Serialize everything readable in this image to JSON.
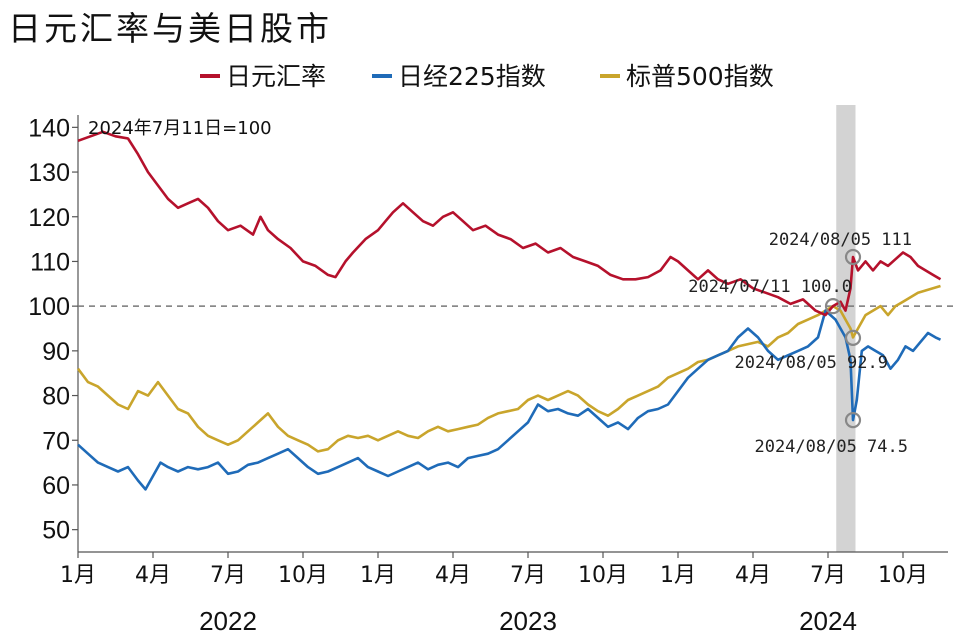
{
  "title": "日元汇率与美日股市",
  "chart_data": {
    "type": "line",
    "note": "2024年7月11日=100",
    "ylim": [
      45,
      145
    ],
    "yticks": [
      50,
      60,
      70,
      80,
      90,
      100,
      110,
      120,
      130,
      140
    ],
    "x_months": [
      {
        "label": "1月",
        "m": 0
      },
      {
        "label": "4月",
        "m": 3
      },
      {
        "label": "7月",
        "m": 6
      },
      {
        "label": "10月",
        "m": 9
      },
      {
        "label": "1月",
        "m": 12
      },
      {
        "label": "4月",
        "m": 15
      },
      {
        "label": "7月",
        "m": 18
      },
      {
        "label": "10月",
        "m": 21
      },
      {
        "label": "1月",
        "m": 24
      },
      {
        "label": "4月",
        "m": 27
      },
      {
        "label": "7月",
        "m": 30
      },
      {
        "label": "10月",
        "m": 33
      }
    ],
    "years": [
      {
        "label": "2022",
        "m": 6
      },
      {
        "label": "2023",
        "m": 18
      },
      {
        "label": "2024",
        "m": 30
      }
    ],
    "xlim_months": [
      0,
      34.8
    ],
    "shaded_period_months": [
      30.33,
      31.1
    ],
    "reference_line": 100,
    "series": [
      {
        "name": "日元汇率",
        "color": "#b5112c",
        "points": [
          [
            0,
            137
          ],
          [
            0.5,
            138
          ],
          [
            1,
            139
          ],
          [
            1.5,
            138
          ],
          [
            2,
            137.5
          ],
          [
            2.4,
            134
          ],
          [
            2.8,
            130
          ],
          [
            3.2,
            127
          ],
          [
            3.6,
            124
          ],
          [
            4,
            122
          ],
          [
            4.4,
            123
          ],
          [
            4.8,
            124
          ],
          [
            5.2,
            122
          ],
          [
            5.6,
            119
          ],
          [
            6,
            117
          ],
          [
            6.5,
            118
          ],
          [
            7,
            116
          ],
          [
            7.3,
            120
          ],
          [
            7.6,
            117
          ],
          [
            8,
            115
          ],
          [
            8.5,
            113
          ],
          [
            9,
            110
          ],
          [
            9.5,
            109
          ],
          [
            10,
            107
          ],
          [
            10.3,
            106.5
          ],
          [
            10.7,
            110
          ],
          [
            11,
            112
          ],
          [
            11.5,
            115
          ],
          [
            12,
            117
          ],
          [
            12.3,
            119
          ],
          [
            12.6,
            121
          ],
          [
            13,
            123
          ],
          [
            13.4,
            121
          ],
          [
            13.8,
            119
          ],
          [
            14.2,
            118
          ],
          [
            14.6,
            120
          ],
          [
            15,
            121
          ],
          [
            15.4,
            119
          ],
          [
            15.8,
            117
          ],
          [
            16.3,
            118
          ],
          [
            16.8,
            116
          ],
          [
            17.3,
            115
          ],
          [
            17.8,
            113
          ],
          [
            18.3,
            114
          ],
          [
            18.8,
            112
          ],
          [
            19.3,
            113
          ],
          [
            19.8,
            111
          ],
          [
            20.3,
            110
          ],
          [
            20.8,
            109
          ],
          [
            21.3,
            107
          ],
          [
            21.8,
            106
          ],
          [
            22.3,
            106
          ],
          [
            22.8,
            106.5
          ],
          [
            23.3,
            108
          ],
          [
            23.7,
            111
          ],
          [
            24,
            110
          ],
          [
            24.4,
            108
          ],
          [
            24.8,
            106
          ],
          [
            25.2,
            108
          ],
          [
            25.6,
            106
          ],
          [
            26,
            105
          ],
          [
            26.5,
            106
          ],
          [
            27,
            104
          ],
          [
            27.5,
            103
          ],
          [
            28,
            102
          ],
          [
            28.5,
            100.5
          ],
          [
            29,
            101.5
          ],
          [
            29.5,
            99
          ],
          [
            29.9,
            98
          ],
          [
            30.2,
            100
          ],
          [
            30.5,
            101
          ],
          [
            30.7,
            99
          ],
          [
            30.9,
            104
          ],
          [
            31,
            111
          ],
          [
            31.2,
            108
          ],
          [
            31.5,
            110
          ],
          [
            31.8,
            108
          ],
          [
            32.1,
            110
          ],
          [
            32.4,
            109
          ],
          [
            32.7,
            110.5
          ],
          [
            33,
            112
          ],
          [
            33.3,
            111
          ],
          [
            33.6,
            109
          ],
          [
            33.9,
            108
          ],
          [
            34.2,
            107
          ],
          [
            34.5,
            106
          ]
        ]
      },
      {
        "name": "日经225指数",
        "color": "#1f6bb8",
        "points": [
          [
            0,
            69
          ],
          [
            0.4,
            67
          ],
          [
            0.8,
            65
          ],
          [
            1.2,
            64
          ],
          [
            1.6,
            63
          ],
          [
            2,
            64
          ],
          [
            2.4,
            61
          ],
          [
            2.7,
            59
          ],
          [
            3,
            62
          ],
          [
            3.3,
            65
          ],
          [
            3.6,
            64
          ],
          [
            4,
            63
          ],
          [
            4.4,
            64
          ],
          [
            4.8,
            63.5
          ],
          [
            5.2,
            64
          ],
          [
            5.6,
            65
          ],
          [
            6,
            62.5
          ],
          [
            6.4,
            63
          ],
          [
            6.8,
            64.5
          ],
          [
            7.2,
            65
          ],
          [
            7.6,
            66
          ],
          [
            8,
            67
          ],
          [
            8.4,
            68
          ],
          [
            8.8,
            66
          ],
          [
            9.2,
            64
          ],
          [
            9.6,
            62.5
          ],
          [
            10,
            63
          ],
          [
            10.4,
            64
          ],
          [
            10.8,
            65
          ],
          [
            11.2,
            66
          ],
          [
            11.6,
            64
          ],
          [
            12,
            63
          ],
          [
            12.4,
            62
          ],
          [
            12.8,
            63
          ],
          [
            13.2,
            64
          ],
          [
            13.6,
            65
          ],
          [
            14,
            63.5
          ],
          [
            14.4,
            64.5
          ],
          [
            14.8,
            65
          ],
          [
            15.2,
            64
          ],
          [
            15.6,
            66
          ],
          [
            16,
            66.5
          ],
          [
            16.4,
            67
          ],
          [
            16.8,
            68
          ],
          [
            17.2,
            70
          ],
          [
            17.6,
            72
          ],
          [
            18,
            74
          ],
          [
            18.4,
            78
          ],
          [
            18.8,
            76.5
          ],
          [
            19.2,
            77
          ],
          [
            19.6,
            76
          ],
          [
            20,
            75.5
          ],
          [
            20.4,
            77
          ],
          [
            20.8,
            75
          ],
          [
            21.2,
            73
          ],
          [
            21.6,
            74
          ],
          [
            22,
            72.5
          ],
          [
            22.4,
            75
          ],
          [
            22.8,
            76.5
          ],
          [
            23.2,
            77
          ],
          [
            23.6,
            78
          ],
          [
            24,
            81
          ],
          [
            24.4,
            84
          ],
          [
            24.8,
            86
          ],
          [
            25.2,
            88
          ],
          [
            25.6,
            89
          ],
          [
            26,
            90
          ],
          [
            26.4,
            93
          ],
          [
            26.8,
            95
          ],
          [
            27.2,
            93
          ],
          [
            27.6,
            90
          ],
          [
            28,
            88
          ],
          [
            28.4,
            89
          ],
          [
            28.8,
            90
          ],
          [
            29.2,
            91
          ],
          [
            29.6,
            93
          ],
          [
            29.9,
            99
          ],
          [
            30.1,
            98
          ],
          [
            30.3,
            97
          ],
          [
            30.5,
            95
          ],
          [
            30.7,
            93
          ],
          [
            30.9,
            88
          ],
          [
            31,
            74.5
          ],
          [
            31.15,
            79
          ],
          [
            31.35,
            90
          ],
          [
            31.6,
            91
          ],
          [
            31.9,
            90
          ],
          [
            32.2,
            89
          ],
          [
            32.5,
            86
          ],
          [
            32.8,
            88
          ],
          [
            33.1,
            91
          ],
          [
            33.4,
            90
          ],
          [
            33.7,
            92
          ],
          [
            34,
            94
          ],
          [
            34.3,
            93
          ],
          [
            34.5,
            92.5
          ]
        ]
      },
      {
        "name": "标普500指数",
        "color": "#c9a52c",
        "points": [
          [
            0,
            86
          ],
          [
            0.4,
            83
          ],
          [
            0.8,
            82
          ],
          [
            1.2,
            80
          ],
          [
            1.6,
            78
          ],
          [
            2,
            77
          ],
          [
            2.4,
            81
          ],
          [
            2.8,
            80
          ],
          [
            3.2,
            83
          ],
          [
            3.6,
            80
          ],
          [
            4,
            77
          ],
          [
            4.4,
            76
          ],
          [
            4.8,
            73
          ],
          [
            5.2,
            71
          ],
          [
            5.6,
            70
          ],
          [
            6,
            69
          ],
          [
            6.4,
            70
          ],
          [
            6.8,
            72
          ],
          [
            7.2,
            74
          ],
          [
            7.6,
            76
          ],
          [
            8,
            73
          ],
          [
            8.4,
            71
          ],
          [
            8.8,
            70
          ],
          [
            9.2,
            69
          ],
          [
            9.6,
            67.5
          ],
          [
            10,
            68
          ],
          [
            10.4,
            70
          ],
          [
            10.8,
            71
          ],
          [
            11.2,
            70.5
          ],
          [
            11.6,
            71
          ],
          [
            12,
            70
          ],
          [
            12.4,
            71
          ],
          [
            12.8,
            72
          ],
          [
            13.2,
            71
          ],
          [
            13.6,
            70.5
          ],
          [
            14,
            72
          ],
          [
            14.4,
            73
          ],
          [
            14.8,
            72
          ],
          [
            15.2,
            72.5
          ],
          [
            15.6,
            73
          ],
          [
            16,
            73.5
          ],
          [
            16.4,
            75
          ],
          [
            16.8,
            76
          ],
          [
            17.2,
            76.5
          ],
          [
            17.6,
            77
          ],
          [
            18,
            79
          ],
          [
            18.4,
            80
          ],
          [
            18.8,
            79
          ],
          [
            19.2,
            80
          ],
          [
            19.6,
            81
          ],
          [
            20,
            80
          ],
          [
            20.4,
            78
          ],
          [
            20.8,
            76.5
          ],
          [
            21.2,
            75.5
          ],
          [
            21.6,
            77
          ],
          [
            22,
            79
          ],
          [
            22.4,
            80
          ],
          [
            22.8,
            81
          ],
          [
            23.2,
            82
          ],
          [
            23.6,
            84
          ],
          [
            24,
            85
          ],
          [
            24.4,
            86
          ],
          [
            24.8,
            87.5
          ],
          [
            25.2,
            88
          ],
          [
            25.6,
            89
          ],
          [
            26,
            90
          ],
          [
            26.4,
            91
          ],
          [
            26.8,
            91.5
          ],
          [
            27.2,
            92
          ],
          [
            27.6,
            91
          ],
          [
            28,
            93
          ],
          [
            28.4,
            94
          ],
          [
            28.8,
            96
          ],
          [
            29.2,
            97
          ],
          [
            29.6,
            98
          ],
          [
            29.9,
            99
          ],
          [
            30.2,
            100
          ],
          [
            30.5,
            99
          ],
          [
            30.7,
            97
          ],
          [
            30.9,
            95
          ],
          [
            31,
            93
          ],
          [
            31.2,
            95
          ],
          [
            31.5,
            98
          ],
          [
            31.8,
            99
          ],
          [
            32.1,
            100
          ],
          [
            32.4,
            98
          ],
          [
            32.7,
            100
          ],
          [
            33,
            101
          ],
          [
            33.3,
            102
          ],
          [
            33.6,
            103
          ],
          [
            33.9,
            103.5
          ],
          [
            34.2,
            104
          ],
          [
            34.5,
            104.5
          ]
        ]
      }
    ],
    "annotations": [
      {
        "label": "2024/07/11  100.0",
        "x": 30.2,
        "y": 100
      },
      {
        "label": "2024/08/05  111",
        "x": 31,
        "y": 111
      },
      {
        "label": "2024/08/05  92.9",
        "x": 31,
        "y": 92.9
      },
      {
        "label": "2024/08/05  74.5",
        "x": 31,
        "y": 74.5
      }
    ]
  }
}
